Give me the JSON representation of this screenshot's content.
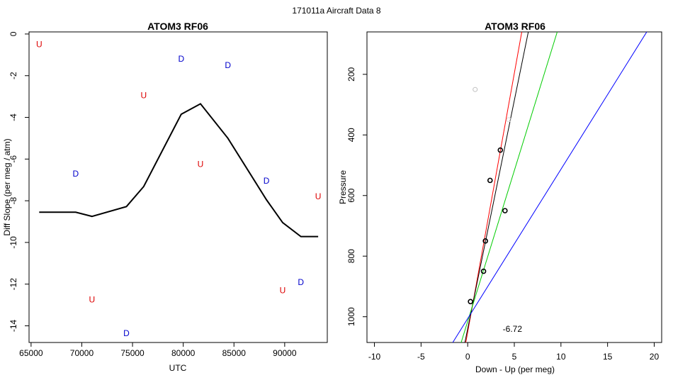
{
  "page_title": "171011a   Aircraft Data 8",
  "chart_data": [
    {
      "type": "line",
      "title": "ATOM3 RF06",
      "xlabel": "UTC",
      "ylabel": "Diff Slope (per meg / atm)",
      "xlim": [
        64800,
        94200
      ],
      "ylim": [
        -14.8,
        0.1
      ],
      "xticks": [
        65000,
        70000,
        75000,
        80000,
        85000,
        90000
      ],
      "yticks": [
        0,
        -2,
        -4,
        -6,
        -8,
        -10,
        -12,
        -14
      ],
      "line": {
        "color": "#000000",
        "x": [
          65800,
          69400,
          71000,
          74400,
          76100,
          79800,
          81700,
          84400,
          88200,
          89800,
          91600,
          93300
        ],
        "y": [
          -8.55,
          -8.55,
          -8.75,
          -8.28,
          -7.32,
          -3.85,
          -3.35,
          -5.0,
          -7.95,
          -9.05,
          -9.72,
          -9.72
        ]
      },
      "markers": [
        {
          "label": "U",
          "color": "#dd0000",
          "x": 65800,
          "y": -0.5
        },
        {
          "label": "D",
          "color": "#0000cc",
          "x": 69400,
          "y": -6.7
        },
        {
          "label": "U",
          "color": "#dd0000",
          "x": 71000,
          "y": -12.75
        },
        {
          "label": "D",
          "color": "#0000cc",
          "x": 74400,
          "y": -14.35
        },
        {
          "label": "U",
          "color": "#dd0000",
          "x": 76100,
          "y": -2.95
        },
        {
          "label": "D",
          "color": "#0000cc",
          "x": 79800,
          "y": -1.2
        },
        {
          "label": "U",
          "color": "#dd0000",
          "x": 81700,
          "y": -6.25
        },
        {
          "label": "D",
          "color": "#0000cc",
          "x": 84400,
          "y": -1.5
        },
        {
          "label": "D",
          "color": "#0000cc",
          "x": 88200,
          "y": -7.05
        },
        {
          "label": "U",
          "color": "#dd0000",
          "x": 89800,
          "y": -12.3
        },
        {
          "label": "D",
          "color": "#0000cc",
          "x": 91600,
          "y": -11.9
        },
        {
          "label": "U",
          "color": "#dd0000",
          "x": 93300,
          "y": -7.8
        }
      ]
    },
    {
      "type": "scatter",
      "title": "ATOM3 RF06",
      "xlabel": "Down - Up (per meg)",
      "ylabel": "Pressure",
      "xlim": [
        -10.8,
        20.8
      ],
      "ylim": [
        1085,
        60
      ],
      "y_reversed": true,
      "xticks": [
        -10,
        -5,
        0,
        5,
        10,
        15,
        20
      ],
      "yticks": [
        200,
        400,
        600,
        800,
        1000
      ],
      "points": [
        {
          "x": 0.8,
          "y": 250,
          "color": "#c0c0c0"
        },
        {
          "x": 4.4,
          "y": 350,
          "color": "#d8d8d8"
        },
        {
          "x": 3.5,
          "y": 450,
          "color": "#000000"
        },
        {
          "x": 2.4,
          "y": 550,
          "color": "#000000"
        },
        {
          "x": 4.0,
          "y": 650,
          "color": "#000000"
        },
        {
          "x": 1.9,
          "y": 750,
          "color": "#000000"
        },
        {
          "x": 1.7,
          "y": 850,
          "color": "#000000"
        },
        {
          "x": 0.3,
          "y": 950,
          "color": "#000000"
        }
      ],
      "fit_lines": [
        {
          "color": "#ff0000",
          "x": [
            -0.2,
            5.8
          ],
          "y": [
            1085,
            60
          ]
        },
        {
          "color": "#000000",
          "x": [
            -0.3,
            6.5
          ],
          "y": [
            1085,
            60
          ]
        },
        {
          "color": "#00cc00",
          "x": [
            -0.7,
            9.6
          ],
          "y": [
            1085,
            60
          ]
        },
        {
          "color": "#0000ff",
          "x": [
            -1.6,
            19.2
          ],
          "y": [
            1085,
            60
          ]
        }
      ],
      "annotation": {
        "text": "-6.72",
        "x": 4.8,
        "y": 1040
      }
    }
  ]
}
